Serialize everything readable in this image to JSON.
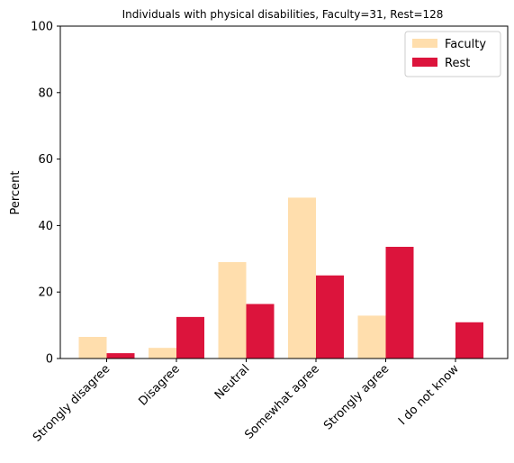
{
  "chart_data": {
    "type": "bar",
    "title": "Individuals with physical disabilities, Faculty=31, Rest=128",
    "xlabel": "",
    "ylabel": "Percent",
    "ylim": [
      0,
      100
    ],
    "yticks": [
      0,
      20,
      40,
      60,
      80,
      100
    ],
    "categories": [
      "Strongly disagree",
      "Disagree",
      "Neutral",
      "Somewhat agree",
      "Strongly agree",
      "I do not know"
    ],
    "series": [
      {
        "name": "Faculty",
        "color": "#FFDEAD",
        "values": [
          6.5,
          3.2,
          29.0,
          48.4,
          12.9,
          0.0
        ]
      },
      {
        "name": "Rest",
        "color": "#DC143C",
        "values": [
          1.6,
          12.5,
          16.4,
          25.0,
          33.6,
          10.9
        ]
      }
    ],
    "legend": {
      "position": "top-right"
    },
    "grid": false
  }
}
